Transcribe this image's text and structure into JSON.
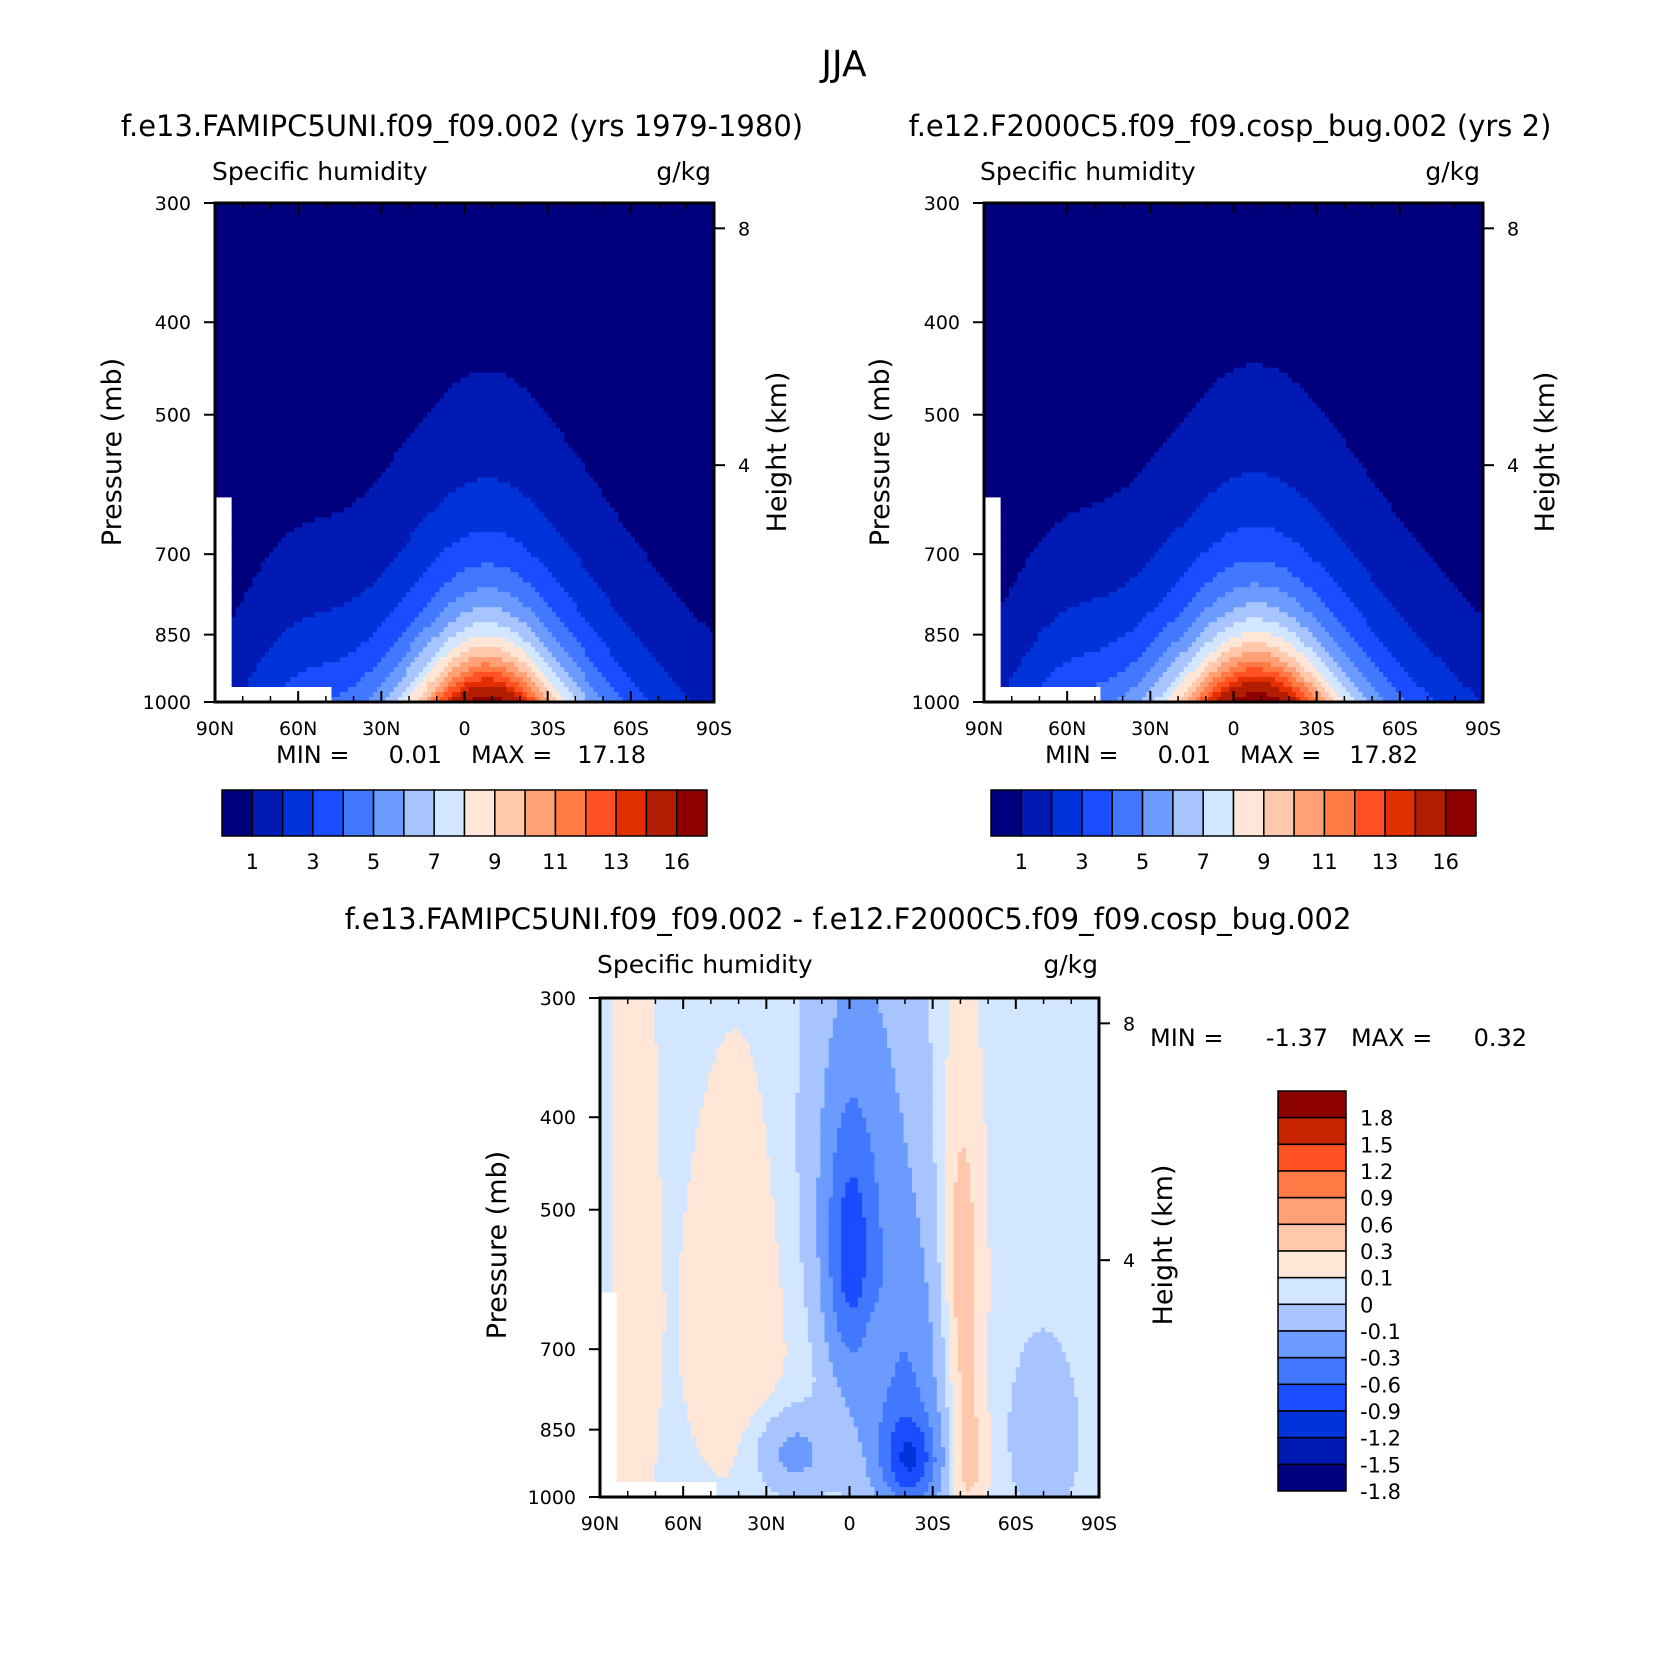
{
  "suptitle": "JJA",
  "colors": {
    "abs": [
      "#00007f",
      "#001ab3",
      "#0033d9",
      "#1a4dff",
      "#4277ff",
      "#6b9bff",
      "#a7c4ff",
      "#d3e6ff",
      "#ffe6d6",
      "#ffc8ac",
      "#ffa077",
      "#ff7a45",
      "#ff5122",
      "#e12f00",
      "#b11d00",
      "#8c0000"
    ],
    "diff": [
      "#00007f",
      "#001ab3",
      "#0033d9",
      "#1a4dff",
      "#4277ff",
      "#6b9bff",
      "#a7c4ff",
      "#d3e6ff",
      "#ffe6d6",
      "#ffc8ac",
      "#ffa077",
      "#ff7a45",
      "#ff5122",
      "#c82400",
      "#8c0000"
    ],
    "missing": "#ffffff"
  },
  "chart_data": [
    {
      "id": "model1",
      "type": "contour",
      "title": "f.e13.FAMIPC5UNI.f09_f09.002 (yrs 1979-1980)",
      "left_label": "Specific humidity",
      "right_label": "g/kg",
      "xlabel": "",
      "ylabel": "Pressure (mb)",
      "y2label": "Height (km)",
      "x_ticks": [
        "90N",
        "60N",
        "30N",
        "0",
        "30S",
        "60S",
        "90S"
      ],
      "y_ticks": [
        "300",
        "400",
        "500",
        "700",
        "850",
        "1000"
      ],
      "y2_ticks": [
        "8",
        "4"
      ],
      "min_label": "MIN =",
      "min_value": "0.01",
      "max_label": "MAX =",
      "max_value": "17.18",
      "max": 17.18,
      "colorbar_labels": [
        "1",
        "3",
        "5",
        "7",
        "9",
        "11",
        "13",
        "16"
      ]
    },
    {
      "id": "model2",
      "type": "contour",
      "title": "f.e12.F2000C5.f09_f09.cosp_bug.002 (yrs 2)",
      "left_label": "Specific humidity",
      "right_label": "g/kg",
      "xlabel": "",
      "ylabel": "Pressure (mb)",
      "y2label": "Height (km)",
      "x_ticks": [
        "90N",
        "60N",
        "30N",
        "0",
        "30S",
        "60S",
        "90S"
      ],
      "y_ticks": [
        "300",
        "400",
        "500",
        "700",
        "850",
        "1000"
      ],
      "y2_ticks": [
        "8",
        "4"
      ],
      "min_label": "MIN =",
      "min_value": "0.01",
      "max_label": "MAX =",
      "max_value": "17.82",
      "max": 17.82,
      "colorbar_labels": [
        "1",
        "3",
        "5",
        "7",
        "9",
        "11",
        "13",
        "16"
      ]
    },
    {
      "id": "diff",
      "type": "contour",
      "title": "f.e13.FAMIPC5UNI.f09_f09.002 - f.e12.F2000C5.f09_f09.cosp_bug.002",
      "left_label": "Specific humidity",
      "right_label": "g/kg",
      "xlabel": "",
      "ylabel": "Pressure (mb)",
      "y2label": "Height (km)",
      "x_ticks": [
        "90N",
        "60N",
        "30N",
        "0",
        "30S",
        "60S",
        "90S"
      ],
      "y_ticks": [
        "300",
        "400",
        "500",
        "700",
        "850",
        "1000"
      ],
      "y2_ticks": [
        "8",
        "4"
      ],
      "min_label": "MIN =",
      "min_value": "-1.37",
      "max_label": "MAX =",
      "max_value": "0.32",
      "colorbar_labels": [
        "1.8",
        "1.5",
        "1.2",
        "0.9",
        "0.6",
        "0.3",
        "0.1",
        "0",
        "-0.1",
        "-0.3",
        "-0.6",
        "-0.9",
        "-1.2",
        "-1.5",
        "-1.8"
      ]
    }
  ]
}
